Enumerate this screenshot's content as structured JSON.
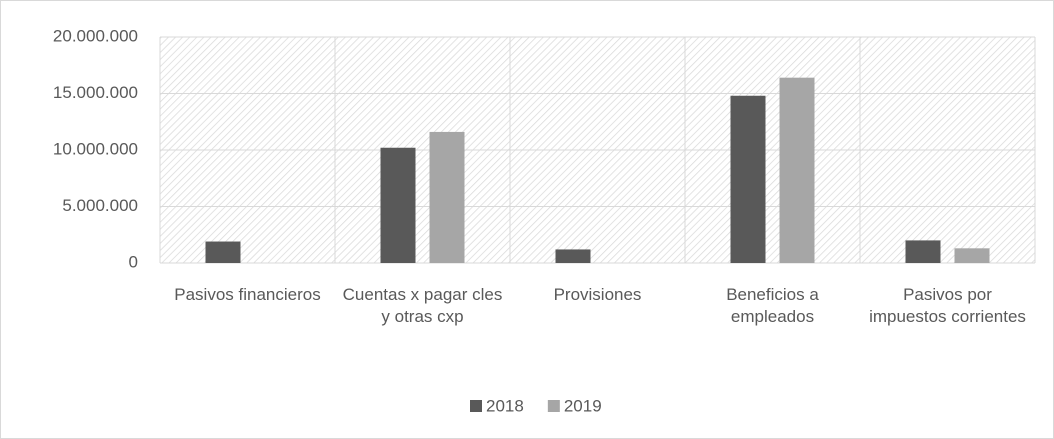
{
  "chart_data": {
    "type": "bar",
    "categories": [
      "Pasivos financieros",
      "Cuentas x pagar cles y otras cxp",
      "Provisiones",
      "Beneficios a empleados",
      "Pasivos por impuestos corrientes"
    ],
    "series": [
      {
        "name": "2018",
        "color": "#595959",
        "values": [
          1900000,
          10200000,
          1200000,
          14800000,
          2000000
        ]
      },
      {
        "name": "2019",
        "color": "#a6a6a6",
        "values": [
          0,
          11600000,
          0,
          16400000,
          1300000
        ]
      }
    ],
    "ylim": [
      0,
      20000000
    ],
    "yticks": [
      0,
      {
        "value": 5000000,
        "label": "5.000.000"
      },
      {
        "value": 10000000,
        "label": "10.000.000"
      },
      {
        "value": 15000000,
        "label": "15.000.000"
      },
      {
        "value": 20000000,
        "label": "20.000.000"
      }
    ],
    "grid": true,
    "legend": "bottom"
  }
}
